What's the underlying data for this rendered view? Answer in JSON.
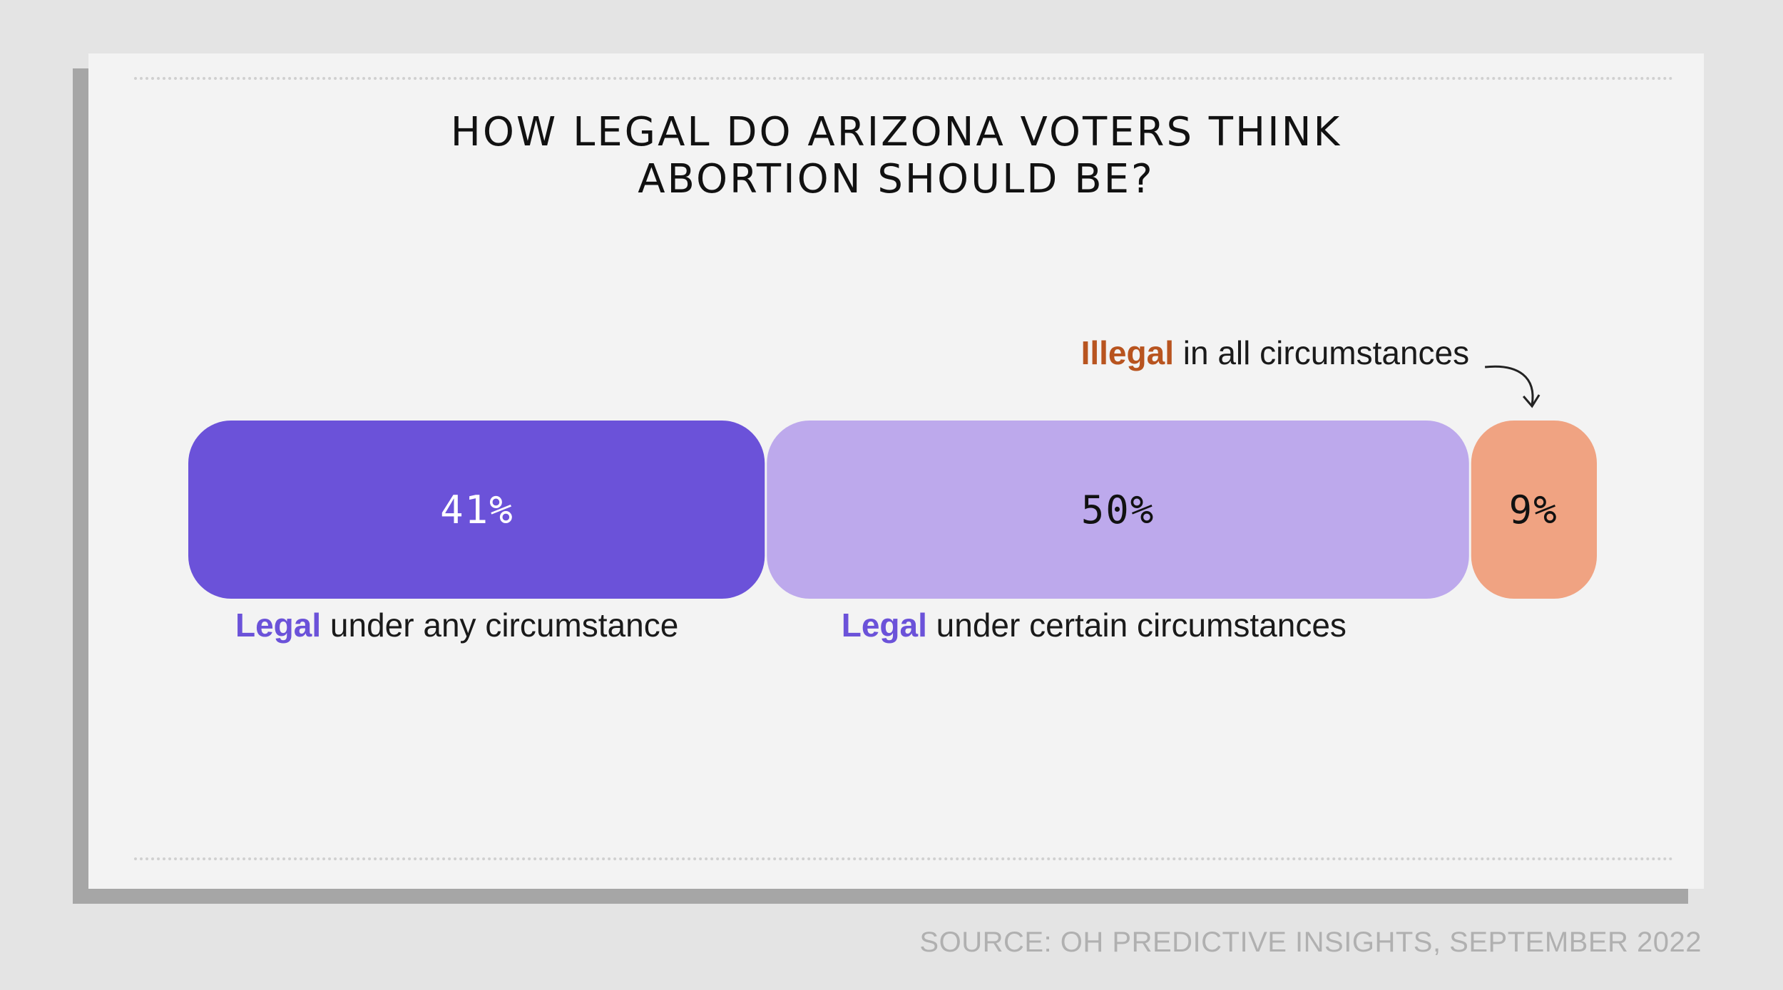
{
  "title_line1": "HOW LEGAL DO ARIZONA VOTERS THINK",
  "title_line2": "ABORTION SHOULD BE?",
  "source": "SOURCE: OH PREDICTIVE INSIGHTS, SEPTEMBER 2022",
  "chart_data": {
    "type": "bar",
    "orientation": "horizontal-stacked",
    "total": 100,
    "segments": [
      {
        "value": 41,
        "value_label": "41%",
        "label_keyword": "Legal",
        "label_rest": " under any circumstance",
        "color": "#6b52d9",
        "text_color": "#ffffff",
        "keyword_color": "#6b52d9"
      },
      {
        "value": 50,
        "value_label": "50%",
        "label_keyword": "Legal",
        "label_rest": " under certain circumstances",
        "color": "#bda9ec",
        "text_color": "#111111",
        "keyword_color": "#6b52d9"
      },
      {
        "value": 9,
        "value_label": "9%",
        "label_keyword": "Illegal",
        "label_rest": " in all circumstances",
        "color": "#f0a382",
        "text_color": "#111111",
        "keyword_color": "#b8541f"
      }
    ]
  }
}
